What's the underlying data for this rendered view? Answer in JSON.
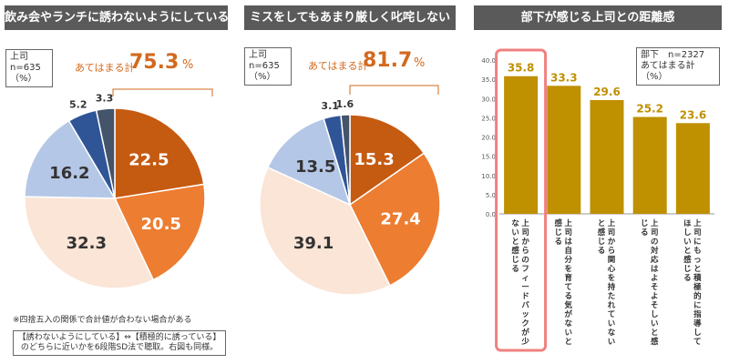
{
  "chart_data": [
    {
      "type": "pie",
      "title": "飲み会やランチに誘わないようにしている",
      "respondents": "上司\nn=635\n（%）",
      "total_label": "あてはまる計",
      "total_value": "75.3",
      "total_unit": "%",
      "slices": [
        {
          "value": 22.5,
          "label": "22.5",
          "color": "#c55a11"
        },
        {
          "value": 20.5,
          "label": "20.5",
          "color": "#ed7d31"
        },
        {
          "value": 32.3,
          "label": "32.3",
          "color": "#fbe5d6"
        },
        {
          "value": 16.2,
          "label": "16.2",
          "color": "#b4c7e7"
        },
        {
          "value": 5.2,
          "label": "5.2",
          "color": "#2f5597"
        },
        {
          "value": 3.3,
          "label": "3.3",
          "color": "#44546a"
        }
      ]
    },
    {
      "type": "pie",
      "title": "ミスをしてもあまり厳しく叱咤しない",
      "respondents": "上司\nn=635\n（%）",
      "total_label": "あてはまる計",
      "total_value": "81.7",
      "total_unit": "%",
      "slices": [
        {
          "value": 15.3,
          "label": "15.3",
          "color": "#c55a11"
        },
        {
          "value": 27.4,
          "label": "27.4",
          "color": "#ed7d31"
        },
        {
          "value": 39.1,
          "label": "39.1",
          "color": "#fbe5d6"
        },
        {
          "value": 13.5,
          "label": "13.5",
          "color": "#b4c7e7"
        },
        {
          "value": 3.1,
          "label": "3.1",
          "color": "#2f5597"
        },
        {
          "value": 1.6,
          "label": "1.6",
          "color": "#44546a"
        }
      ]
    },
    {
      "type": "bar",
      "title": "部下が感じる上司との距離感",
      "legend": "部下　n=2327\nあてはまる計（%）",
      "ylim": [
        0,
        40
      ],
      "yticks": [
        "0.0",
        "5.0",
        "10.0",
        "15.0",
        "20.0",
        "25.0",
        "30.0",
        "35.0",
        "40.0"
      ],
      "categories": [
        "上司からのフィードバックが少ないと感じる",
        "上司は自分を育てる気がないと感じる",
        "上司から関心を持たれていないと感じる",
        "上司の対応はよそよそしいと感じる",
        "上司にもっと積極的に指導してほしいと感じる"
      ],
      "values": [
        35.8,
        33.3,
        29.6,
        25.2,
        23.6
      ],
      "value_labels": [
        "35.8",
        "33.3",
        "29.6",
        "25.2",
        "23.6"
      ],
      "bar_color": "#bf9000",
      "highlight_index": 0
    }
  ],
  "notes": {
    "rounding": "※四捨五入の関係で合計値が合わない場合がある",
    "method": "【誘わないようにしている】⇔【積極的に誘っている】\nのどちらに近いかを6段階SD法で聴取。右図も同様。"
  },
  "colors": {
    "header_bg": "#5a5a5a",
    "accent": "#d2691e",
    "highlight": "#f08080"
  }
}
